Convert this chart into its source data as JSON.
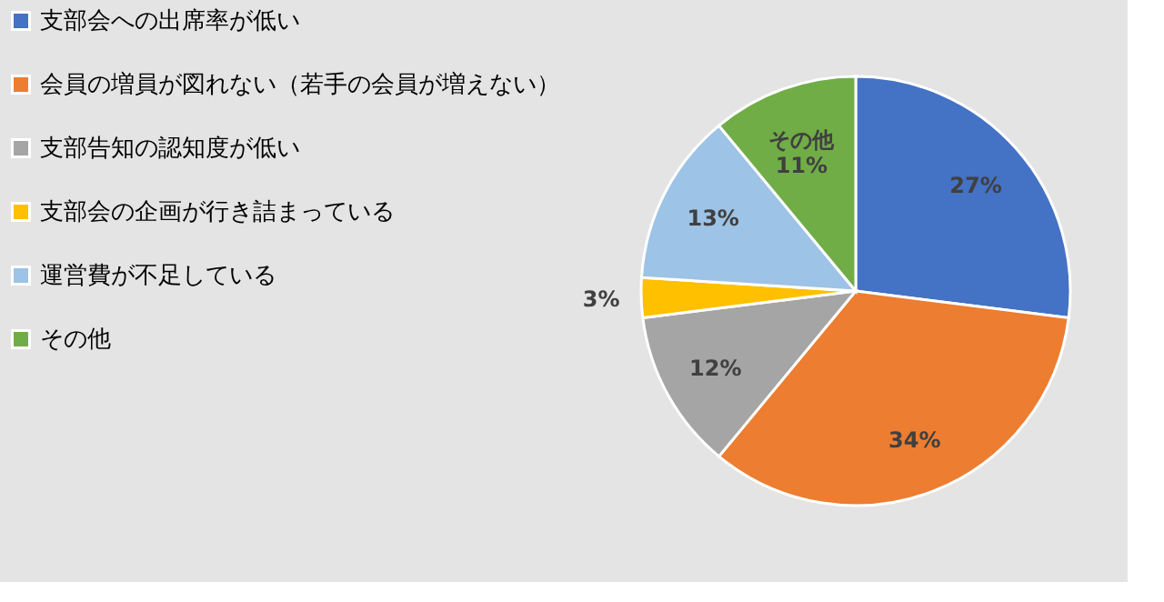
{
  "chart_data": {
    "type": "pie",
    "categories": [
      "支部会への出席率が低い",
      "会員の増員が図れない（若手の会員が増えない）",
      "支部告知の認知度が低い",
      "支部会の企画が行き詰まっている",
      "運営費が不足している",
      "その他"
    ],
    "values": [
      27,
      34,
      12,
      3,
      13,
      11
    ],
    "colors": [
      "#4472c4",
      "#ed7d31",
      "#a5a5a5",
      "#ffc000",
      "#9dc3e6",
      "#70ad47"
    ],
    "value_labels": [
      "27%",
      "34%",
      "12%",
      "3%",
      "13%",
      "その他\n11%"
    ],
    "legend": "left"
  }
}
